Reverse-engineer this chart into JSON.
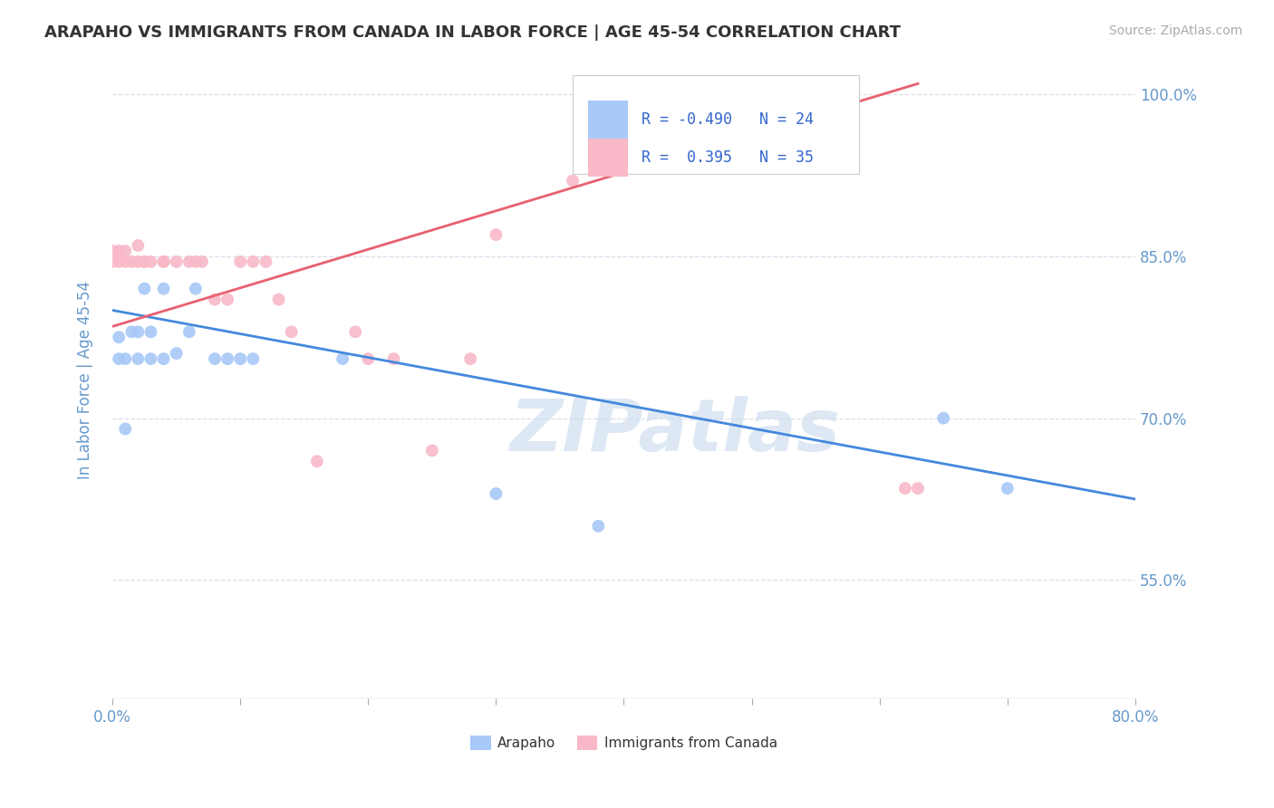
{
  "title": "ARAPAHO VS IMMIGRANTS FROM CANADA IN LABOR FORCE | AGE 45-54 CORRELATION CHART",
  "source": "Source: ZipAtlas.com",
  "ylabel": "In Labor Force | Age 45-54",
  "xlim": [
    0.0,
    0.8
  ],
  "ylim": [
    0.44,
    1.03
  ],
  "xticks": [
    0.0,
    0.1,
    0.2,
    0.3,
    0.4,
    0.5,
    0.6,
    0.7,
    0.8
  ],
  "yticks_right": [
    0.55,
    0.7,
    0.85,
    1.0
  ],
  "yticklabels_right": [
    "55.0%",
    "70.0%",
    "85.0%",
    "100.0%"
  ],
  "arapaho_color": "#a8c8f8",
  "canada_color": "#f8b8c8",
  "arapaho_line_color": "#4488dd",
  "canada_line_color": "#e86070",
  "watermark": "ZIPatlas",
  "legend_R_arapaho": "-0.490",
  "legend_N_arapaho": "24",
  "legend_R_canada": "0.395",
  "legend_N_canada": "35",
  "arapaho_line_x0": 0.0,
  "arapaho_line_y0": 0.8,
  "arapaho_line_x1": 0.8,
  "arapaho_line_y1": 0.625,
  "canada_line_x0": 0.0,
  "canada_line_y0": 0.785,
  "canada_line_x1": 0.63,
  "canada_line_y1": 1.01,
  "arapaho_x": [
    0.005,
    0.005,
    0.01,
    0.01,
    0.015,
    0.02,
    0.02,
    0.025,
    0.03,
    0.03,
    0.04,
    0.04,
    0.05,
    0.06,
    0.065,
    0.08,
    0.09,
    0.1,
    0.11,
    0.18,
    0.3,
    0.38,
    0.65,
    0.7
  ],
  "arapaho_y": [
    0.775,
    0.755,
    0.69,
    0.755,
    0.78,
    0.78,
    0.755,
    0.82,
    0.755,
    0.78,
    0.755,
    0.82,
    0.76,
    0.78,
    0.82,
    0.755,
    0.755,
    0.755,
    0.755,
    0.755,
    0.63,
    0.6,
    0.7,
    0.635
  ],
  "canada_x": [
    0.0,
    0.0,
    0.005,
    0.005,
    0.01,
    0.01,
    0.015,
    0.02,
    0.02,
    0.025,
    0.025,
    0.03,
    0.04,
    0.04,
    0.05,
    0.06,
    0.065,
    0.07,
    0.08,
    0.09,
    0.1,
    0.11,
    0.12,
    0.13,
    0.14,
    0.16,
    0.19,
    0.2,
    0.22,
    0.25,
    0.28,
    0.3,
    0.36,
    0.62,
    0.63
  ],
  "canada_y": [
    0.845,
    0.855,
    0.845,
    0.855,
    0.845,
    0.855,
    0.845,
    0.845,
    0.86,
    0.845,
    0.845,
    0.845,
    0.845,
    0.845,
    0.845,
    0.845,
    0.845,
    0.845,
    0.81,
    0.81,
    0.845,
    0.845,
    0.845,
    0.81,
    0.78,
    0.66,
    0.78,
    0.755,
    0.755,
    0.67,
    0.755,
    0.87,
    0.92,
    0.635,
    0.635
  ],
  "background_color": "#ffffff",
  "grid_color": "#ddddee",
  "title_color": "#333333",
  "axis_label_color": "#6699cc",
  "tick_color": "#6699cc"
}
